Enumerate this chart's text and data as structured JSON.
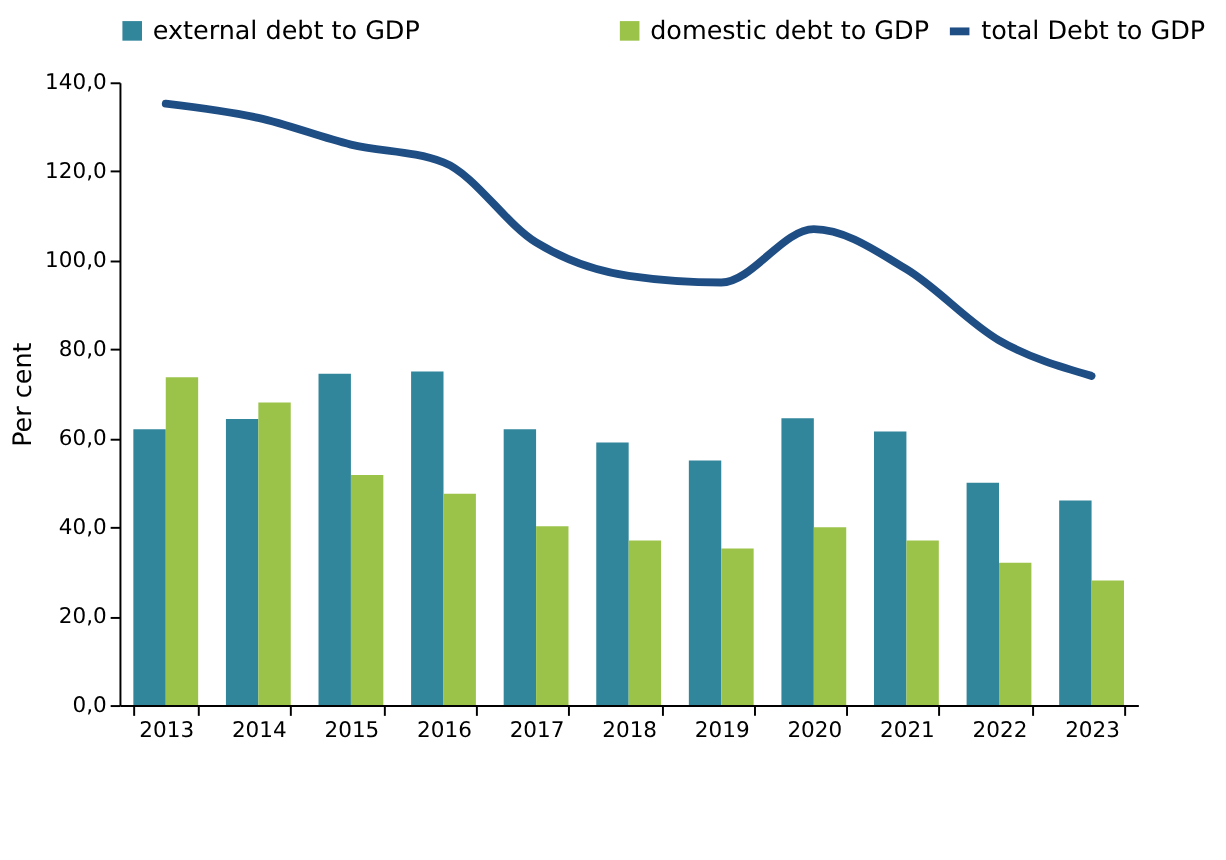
{
  "chart_data": {
    "type": "bar",
    "ylabel": "Per cent",
    "categories": [
      "2013",
      "2014",
      "2015",
      "2016",
      "2017",
      "2018",
      "2019",
      "2020",
      "2021",
      "2022",
      "2023"
    ],
    "series": [
      {
        "name": "external debt to GDP",
        "color": "#31869b",
        "values": [
          62,
          64.3,
          74.5,
          75,
          62,
          59,
          55,
          64.5,
          61.5,
          50,
          46
        ]
      },
      {
        "name": "domestic debt to GDP",
        "color": "#9bc34a",
        "values": [
          73.7,
          68,
          51.7,
          47.5,
          40.2,
          37,
          35.2,
          40,
          37,
          32,
          28
        ]
      },
      {
        "name": "total Debt to GDP",
        "type": "line",
        "color": "#1f4e85",
        "values": [
          135.2,
          132,
          126,
          122,
          104,
          96.5,
          95,
          107,
          98,
          82,
          74
        ]
      }
    ],
    "ylim": [
      0,
      140
    ],
    "yticks": [
      {
        "value": 0,
        "label": "0,0"
      },
      {
        "value": 20,
        "label": "20,0"
      },
      {
        "value": 40,
        "label": "40,0"
      },
      {
        "value": 60,
        "label": "60,0"
      },
      {
        "value": 80,
        "label": "80,0"
      },
      {
        "value": 100,
        "label": "100,0"
      },
      {
        "value": 120,
        "label": "120,0"
      },
      {
        "value": 140,
        "label": "140,0"
      }
    ],
    "grid": false,
    "legend": "top",
    "marker": "none",
    "line_style": "solid"
  }
}
